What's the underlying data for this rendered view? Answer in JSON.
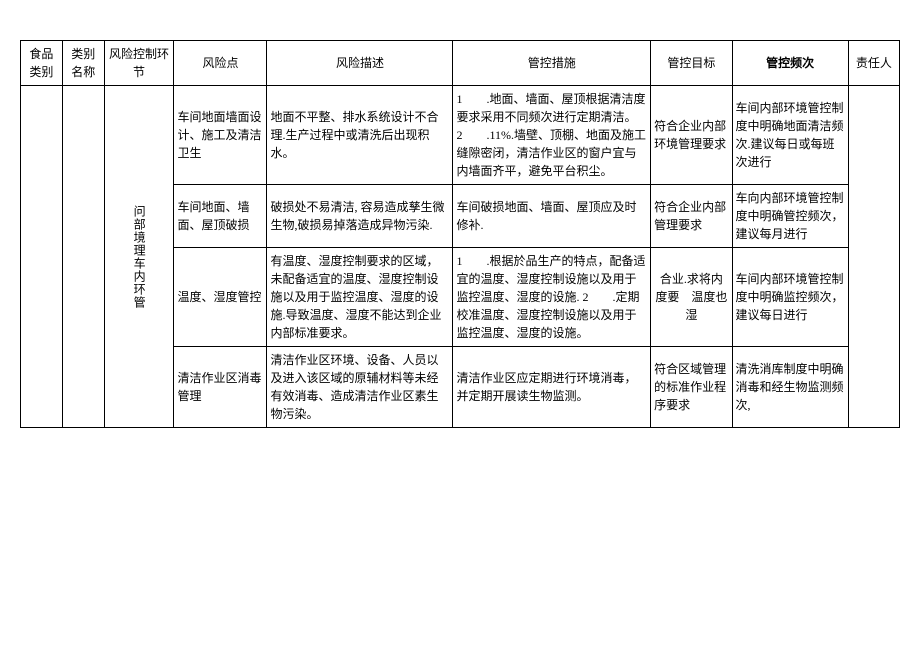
{
  "headers": {
    "food_category": "食品类别",
    "category_name": "类别名称",
    "risk_link": "风险控制环节",
    "risk_point": "风险点",
    "risk_desc": "风险描述",
    "measure": "管控措施",
    "target": "管控目标",
    "frequency": "管控频次",
    "responsible": "责任人"
  },
  "risk_link_label": "问部境理车内环管",
  "rows": [
    {
      "risk_point": "车间地面墙面设计、施工及清洁卫生",
      "risk_desc": "地面不平整、排水系统设计不合理.生产过程中或清洗后出现积水。",
      "measure": "1　　.地面、墙面、屋顶根据清洁度要求采用不同频次进行定期清洁。\n2　　.11%.墙壁、顶棚、地面及施工缝隙密闭，清洁作业区的窗户宜与内墙面齐平，避免平台积尘。",
      "target": "符合企业内部环境管理要求",
      "frequency": "车间内部环境管控制度中明确地面清洁频次.建议每日或每班次进行"
    },
    {
      "risk_point": "车间地面、墙面、屋顶破损",
      "risk_desc": "破损处不易清洁, 容易造成孳生微生物,破损易掉落造成异物污染.",
      "measure": "车间破损地面、墙面、屋顶应及时修补.",
      "target": "符合企业内部管理要求",
      "frequency": "车向内部环境管控制度中明确管控频次，建议每月进行"
    },
    {
      "risk_point": "温度、湿度管控",
      "risk_desc": "有温度、湿度控制要求的区域，未配备适宜的温度、湿度控制设施以及用于监控温度、湿度的设施.导致温度、湿度不能达到企业内部标准要求。",
      "measure": "1　　.根据於品生产的特点，配备适宜的温度、湿度控制设施以及用于监控温度、湿度的设施.\n2　　.定期校准温度、湿度控制设施以及用于监控温度、湿度的设施。",
      "target": "合业.求将内度要　温度也　湿",
      "frequency": "车间内部环境管控制度中明确监控频次，建议每日进行"
    },
    {
      "risk_point": "清洁作业区消毒管理",
      "risk_desc": "清洁作业区环境、设备、人员以及进入该区域的原辅材料等未经有效消毒、造成清洁作业区素生物污染。",
      "measure": "清洁作业区应定期进行环境消毒，并定期开展读生物监测。",
      "target": "符合区域管理的标准作业程序要求",
      "frequency": "清洗消库制度中明确消毒和经生物监测频次,"
    }
  ],
  "style": {
    "font_size": 12,
    "border_color": "#000000",
    "background": "#ffffff"
  }
}
